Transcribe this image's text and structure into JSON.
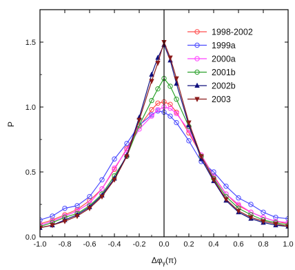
{
  "chart_data": {
    "type": "line",
    "xlabel": "Δφ",
    "xlabel_sub": "γ",
    "xlabel_suffix": "(π)",
    "ylabel": "P",
    "xlim": [
      -1.0,
      1.0
    ],
    "ylim": [
      0.0,
      1.75
    ],
    "xticks": [
      -1.0,
      -0.8,
      -0.6,
      -0.4,
      -0.2,
      0.0,
      0.2,
      0.4,
      0.6,
      0.8,
      1.0
    ],
    "xtick_labels": [
      "-1.0",
      "-0.8",
      "-0.6",
      "-0.4",
      "-0.2",
      "0.0",
      "0.2",
      "0.4",
      "0.6",
      "0.8",
      "1.0"
    ],
    "yticks": [
      0.0,
      0.5,
      1.0,
      1.5
    ],
    "ytick_labels": [
      "0.0",
      "0.5",
      "1.0",
      "1.5"
    ],
    "vertical_line_x": 0.0,
    "legend_position": "top-right",
    "grid": false,
    "x": [
      -1.0,
      -0.9,
      -0.8,
      -0.7,
      -0.6,
      -0.5,
      -0.4,
      -0.3,
      -0.2,
      -0.1,
      -0.05,
      0.0,
      0.05,
      0.1,
      0.2,
      0.3,
      0.4,
      0.5,
      0.6,
      0.7,
      0.8,
      0.9,
      1.0
    ],
    "series": [
      {
        "name": "1998-2002",
        "color": "#ff4a4a",
        "marker": "circle",
        "values": [
          0.1,
          0.13,
          0.17,
          0.21,
          0.28,
          0.37,
          0.52,
          0.68,
          0.85,
          0.98,
          1.03,
          1.04,
          1.02,
          0.96,
          0.8,
          0.63,
          0.47,
          0.33,
          0.24,
          0.19,
          0.15,
          0.12,
          0.1
        ]
      },
      {
        "name": "1999a",
        "color": "#4a4aff",
        "marker": "circle",
        "values": [
          0.13,
          0.16,
          0.22,
          0.24,
          0.31,
          0.44,
          0.6,
          0.72,
          0.86,
          0.94,
          0.97,
          0.96,
          0.93,
          0.88,
          0.74,
          0.58,
          0.5,
          0.39,
          0.3,
          0.25,
          0.19,
          0.15,
          0.14
        ]
      },
      {
        "name": "2000a",
        "color": "#ff40ff",
        "marker": "circle",
        "values": [
          0.09,
          0.12,
          0.16,
          0.2,
          0.26,
          0.37,
          0.53,
          0.67,
          0.83,
          0.93,
          0.98,
          1.0,
          0.99,
          0.95,
          0.82,
          0.63,
          0.46,
          0.33,
          0.25,
          0.19,
          0.15,
          0.12,
          0.11
        ]
      },
      {
        "name": "2001b",
        "color": "#2aa02a",
        "marker": "circle",
        "values": [
          0.08,
          0.11,
          0.15,
          0.18,
          0.24,
          0.33,
          0.47,
          0.62,
          0.86,
          1.05,
          1.14,
          1.22,
          1.16,
          1.06,
          0.85,
          0.62,
          0.45,
          0.31,
          0.22,
          0.17,
          0.13,
          0.11,
          0.09
        ]
      },
      {
        "name": "2002b",
        "color": "#10107e",
        "marker": "triangle-up",
        "values": [
          0.07,
          0.09,
          0.13,
          0.17,
          0.23,
          0.32,
          0.45,
          0.63,
          0.92,
          1.25,
          1.38,
          1.48,
          1.36,
          1.18,
          0.86,
          0.6,
          0.43,
          0.28,
          0.19,
          0.14,
          0.11,
          0.09,
          0.08
        ]
      },
      {
        "name": "2003",
        "color": "#8b1a1a",
        "marker": "triangle-down",
        "values": [
          0.07,
          0.09,
          0.12,
          0.16,
          0.22,
          0.31,
          0.44,
          0.62,
          0.9,
          1.2,
          1.34,
          1.5,
          1.38,
          1.22,
          0.88,
          0.62,
          0.44,
          0.29,
          0.2,
          0.15,
          0.12,
          0.1,
          0.08
        ]
      }
    ]
  }
}
